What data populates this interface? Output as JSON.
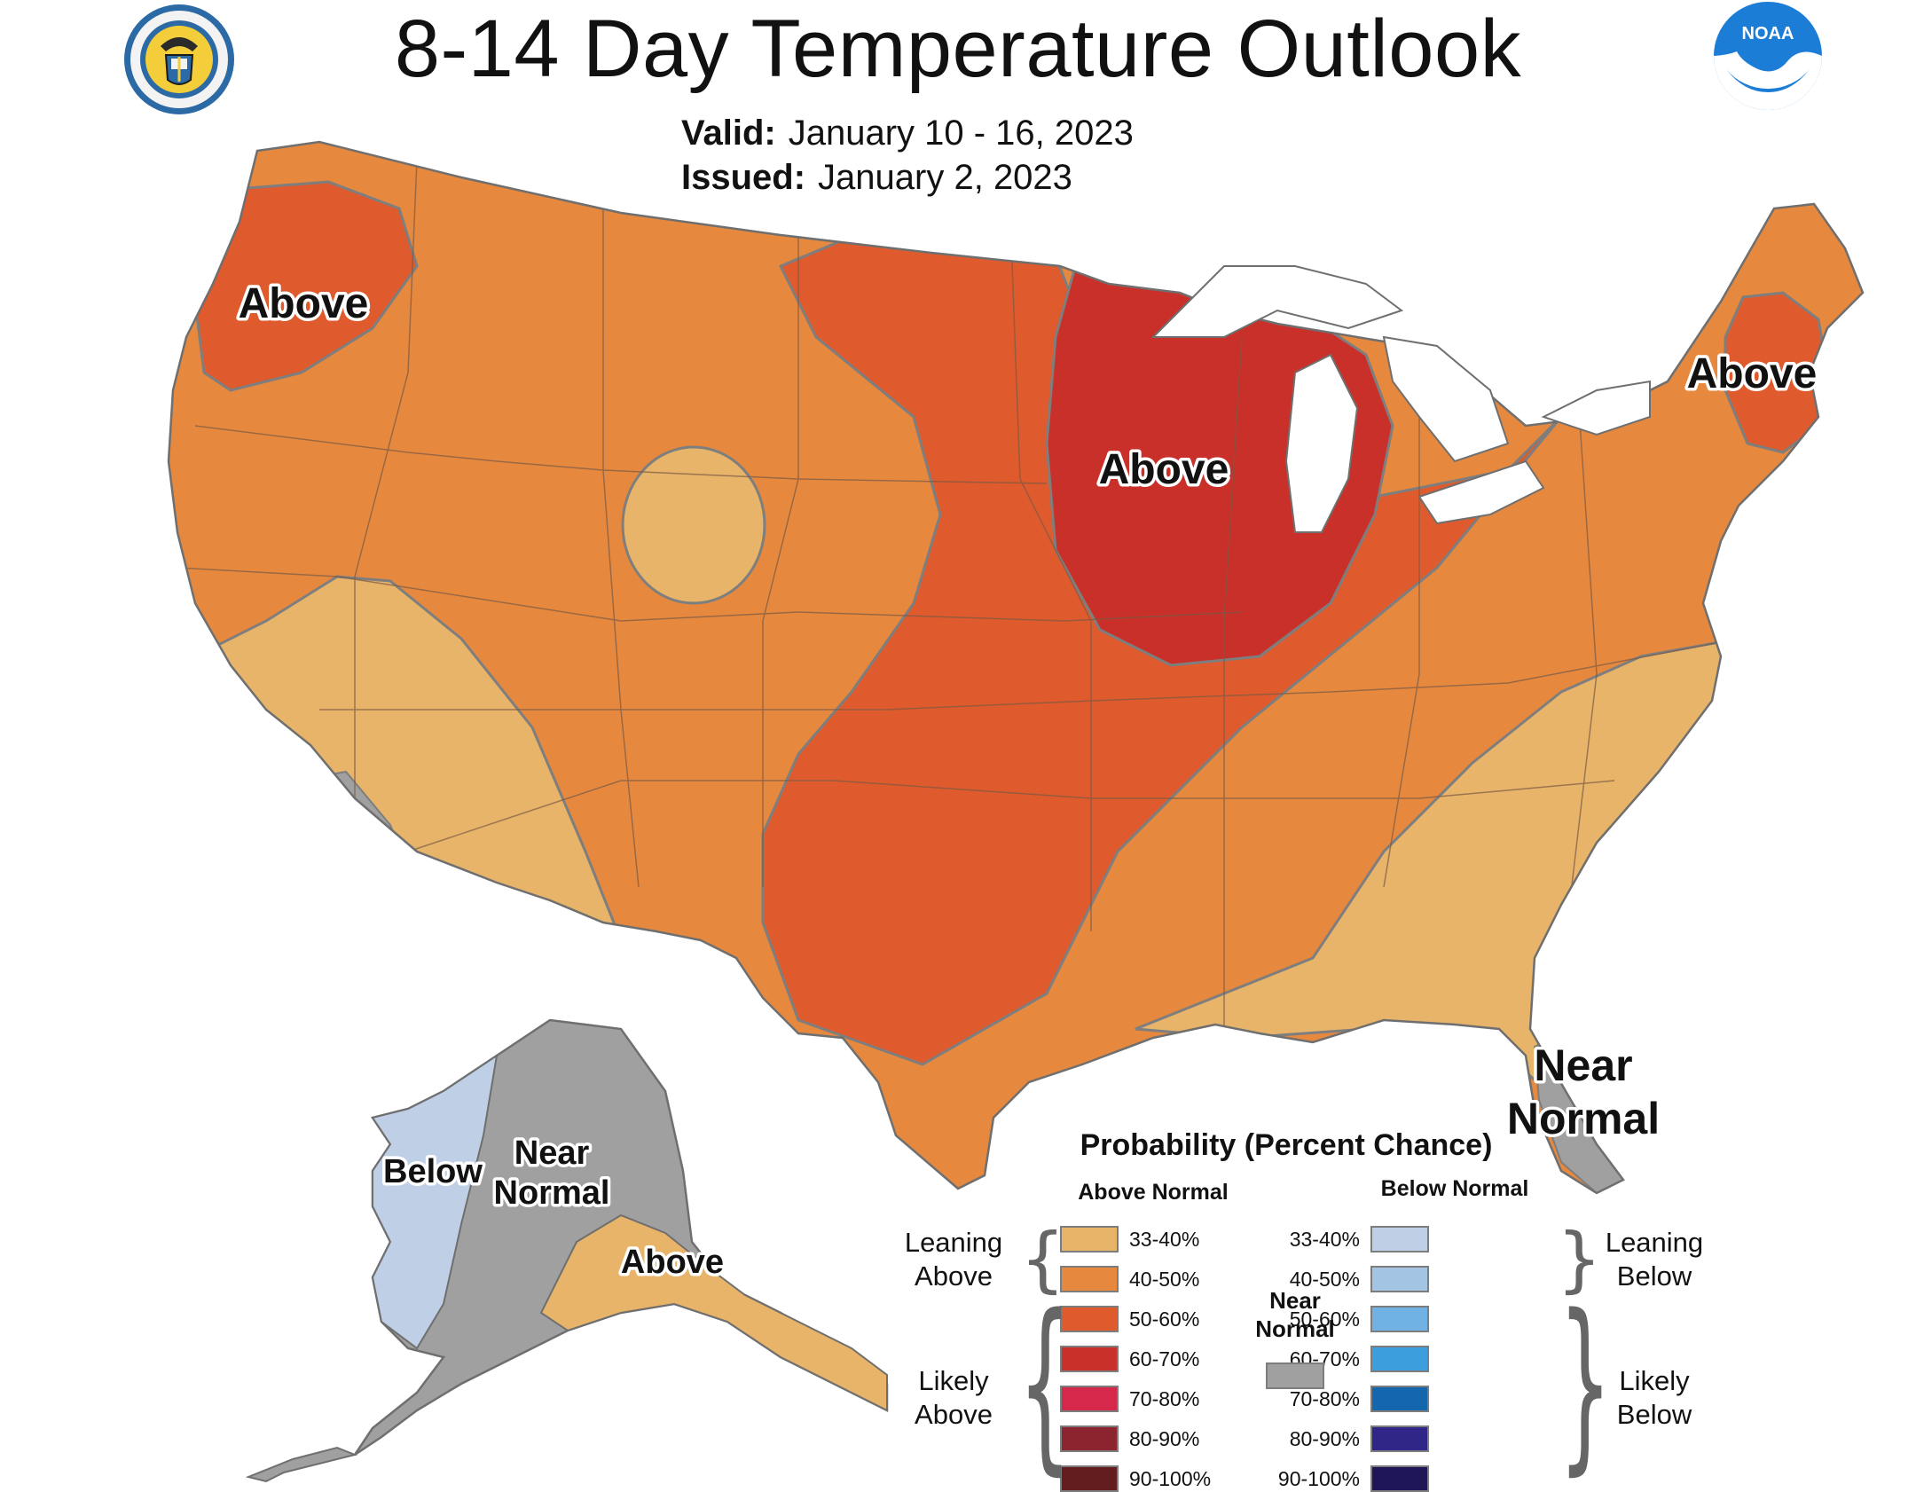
{
  "title": "8-14 Day Temperature Outlook",
  "valid": {
    "label": "Valid:",
    "value": "January 10 - 16, 2023"
  },
  "issued": {
    "label": "Issued:",
    "value": "January 2, 2023"
  },
  "logos": {
    "left": {
      "icon": "department-of-commerce-seal-icon",
      "text": "DEPARTMENT OF COMMERCE · UNITED STATES OF AMERICA"
    },
    "right": {
      "icon": "noaa-logo-icon",
      "text": "NOAA"
    }
  },
  "regions": {
    "pacific_northwest": "Above",
    "upper_midwest": "Above",
    "new_england": "Above",
    "florida": [
      "Near",
      "Normal"
    ],
    "alaska_west": "Below",
    "alaska_central": [
      "Near",
      "Normal"
    ],
    "alaska_south": "Above"
  },
  "legend": {
    "title": "Probability (Percent Chance)",
    "above_header": "Above Normal",
    "below_header": "Below Normal",
    "near_normal": [
      "Near",
      "Normal"
    ],
    "leaning_above": [
      "Leaning",
      "Above"
    ],
    "likely_above": [
      "Likely",
      "Above"
    ],
    "leaning_below": [
      "Leaning",
      "Below"
    ],
    "likely_below": [
      "Likely",
      "Below"
    ],
    "above": [
      {
        "label": "33-40%",
        "color": "#e8b46a"
      },
      {
        "label": "40-50%",
        "color": "#e6893f"
      },
      {
        "label": "50-60%",
        "color": "#df5a2d"
      },
      {
        "label": "60-70%",
        "color": "#c9302a"
      },
      {
        "label": "70-80%",
        "color": "#d6284a"
      },
      {
        "label": "80-90%",
        "color": "#8c2430"
      },
      {
        "label": "90-100%",
        "color": "#641d1e"
      }
    ],
    "below": [
      {
        "label": "33-40%",
        "color": "#bfcfe6"
      },
      {
        "label": "40-50%",
        "color": "#a3c4e3"
      },
      {
        "label": "50-60%",
        "color": "#6fb2e3"
      },
      {
        "label": "60-70%",
        "color": "#3c9edc"
      },
      {
        "label": "70-80%",
        "color": "#1467ad"
      },
      {
        "label": "80-90%",
        "color": "#2f2688"
      },
      {
        "label": "90-100%",
        "color": "#1e1656"
      }
    ],
    "near_color": "#a0a0a0"
  }
}
